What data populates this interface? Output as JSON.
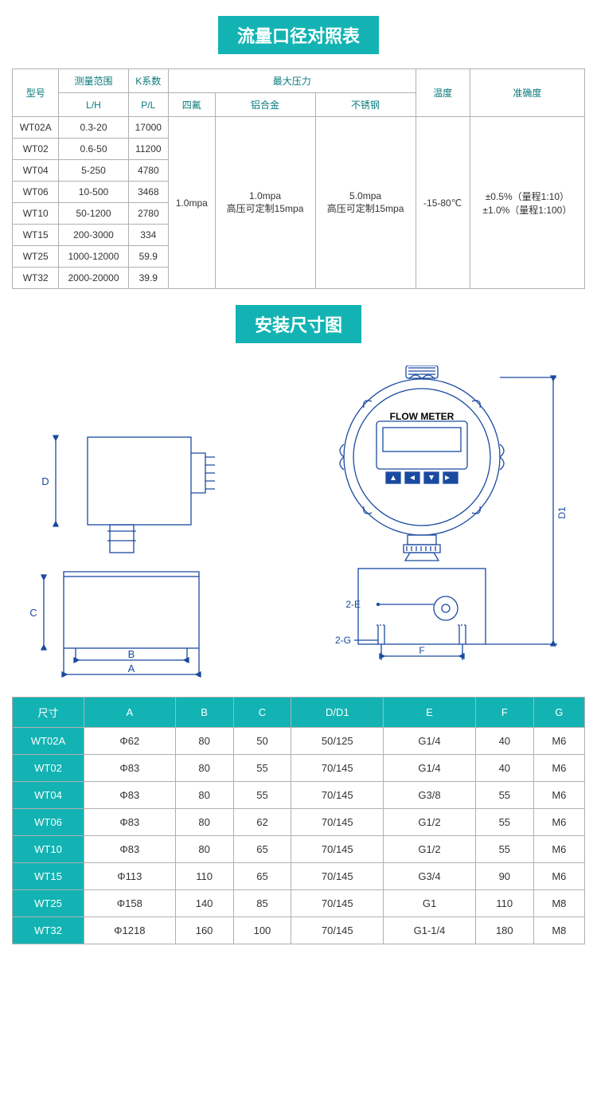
{
  "colors": {
    "teal": "#13b3b3",
    "teal_text": "#0a7a7a",
    "border": "#b0b0b0",
    "text": "#333333",
    "diagram_stroke": "#1a4aa0"
  },
  "section1_title": "流量口径对照表",
  "section2_title": "安装尺寸图",
  "spec_table": {
    "headers": {
      "model": "型号",
      "range": "测量范围",
      "range_unit": "L/H",
      "k": "K系数",
      "k_unit": "P/L",
      "maxp": "最大压力",
      "maxp_sub": [
        "四氟",
        "铝合金",
        "不锈钢"
      ],
      "temp": "温度",
      "acc": "准确度"
    },
    "rows": [
      {
        "model": "WT02A",
        "range": "0.3-20",
        "k": "17000"
      },
      {
        "model": "WT02",
        "range": "0.6-50",
        "k": "11200"
      },
      {
        "model": "WT04",
        "range": "5-250",
        "k": "4780"
      },
      {
        "model": "WT06",
        "range": "10-500",
        "k": "3468"
      },
      {
        "model": "WT10",
        "range": "50-1200",
        "k": "2780"
      },
      {
        "model": "WT15",
        "range": "200-3000",
        "k": "334"
      },
      {
        "model": "WT25",
        "range": "1000-12000",
        "k": "59.9"
      },
      {
        "model": "WT32",
        "range": "2000-20000",
        "k": "39.9"
      }
    ],
    "maxp_vals": {
      "ptfe": "1.0mpa",
      "al_l1": "1.0mpa",
      "al_l2": "高压可定制15mpa",
      "ss_l1": "5.0mpa",
      "ss_l2": "高压可定制15mpa"
    },
    "temp_val": "-15-80℃",
    "acc_l1": "±0.5%（量程1:10）",
    "acc_l2": "±1.0%（量程1:100）"
  },
  "diagram": {
    "labels": {
      "A": "A",
      "B": "B",
      "C": "C",
      "D": "D",
      "D1": "D1",
      "E": "2-E",
      "F": "F",
      "G": "2-G",
      "device": "FLOW METER"
    },
    "style": {
      "stroke_width": 1.2,
      "font": 12
    }
  },
  "dims_table": {
    "header": [
      "尺寸",
      "A",
      "B",
      "C",
      "D/D1",
      "E",
      "F",
      "G"
    ],
    "rows": [
      [
        "WT02A",
        "Φ62",
        "80",
        "50",
        "50/125",
        "G1/4",
        "40",
        "M6"
      ],
      [
        "WT02",
        "Φ83",
        "80",
        "55",
        "70/145",
        "G1/4",
        "40",
        "M6"
      ],
      [
        "WT04",
        "Φ83",
        "80",
        "55",
        "70/145",
        "G3/8",
        "55",
        "M6"
      ],
      [
        "WT06",
        "Φ83",
        "80",
        "62",
        "70/145",
        "G1/2",
        "55",
        "M6"
      ],
      [
        "WT10",
        "Φ83",
        "80",
        "65",
        "70/145",
        "G1/2",
        "55",
        "M6"
      ],
      [
        "WT15",
        "Φ113",
        "110",
        "65",
        "70/145",
        "G3/4",
        "90",
        "M6"
      ],
      [
        "WT25",
        "Φ158",
        "140",
        "85",
        "70/145",
        "G1",
        "110",
        "M8"
      ],
      [
        "WT32",
        "Φ1218",
        "160",
        "100",
        "70/145",
        "G1-1/4",
        "180",
        "M8"
      ]
    ]
  }
}
